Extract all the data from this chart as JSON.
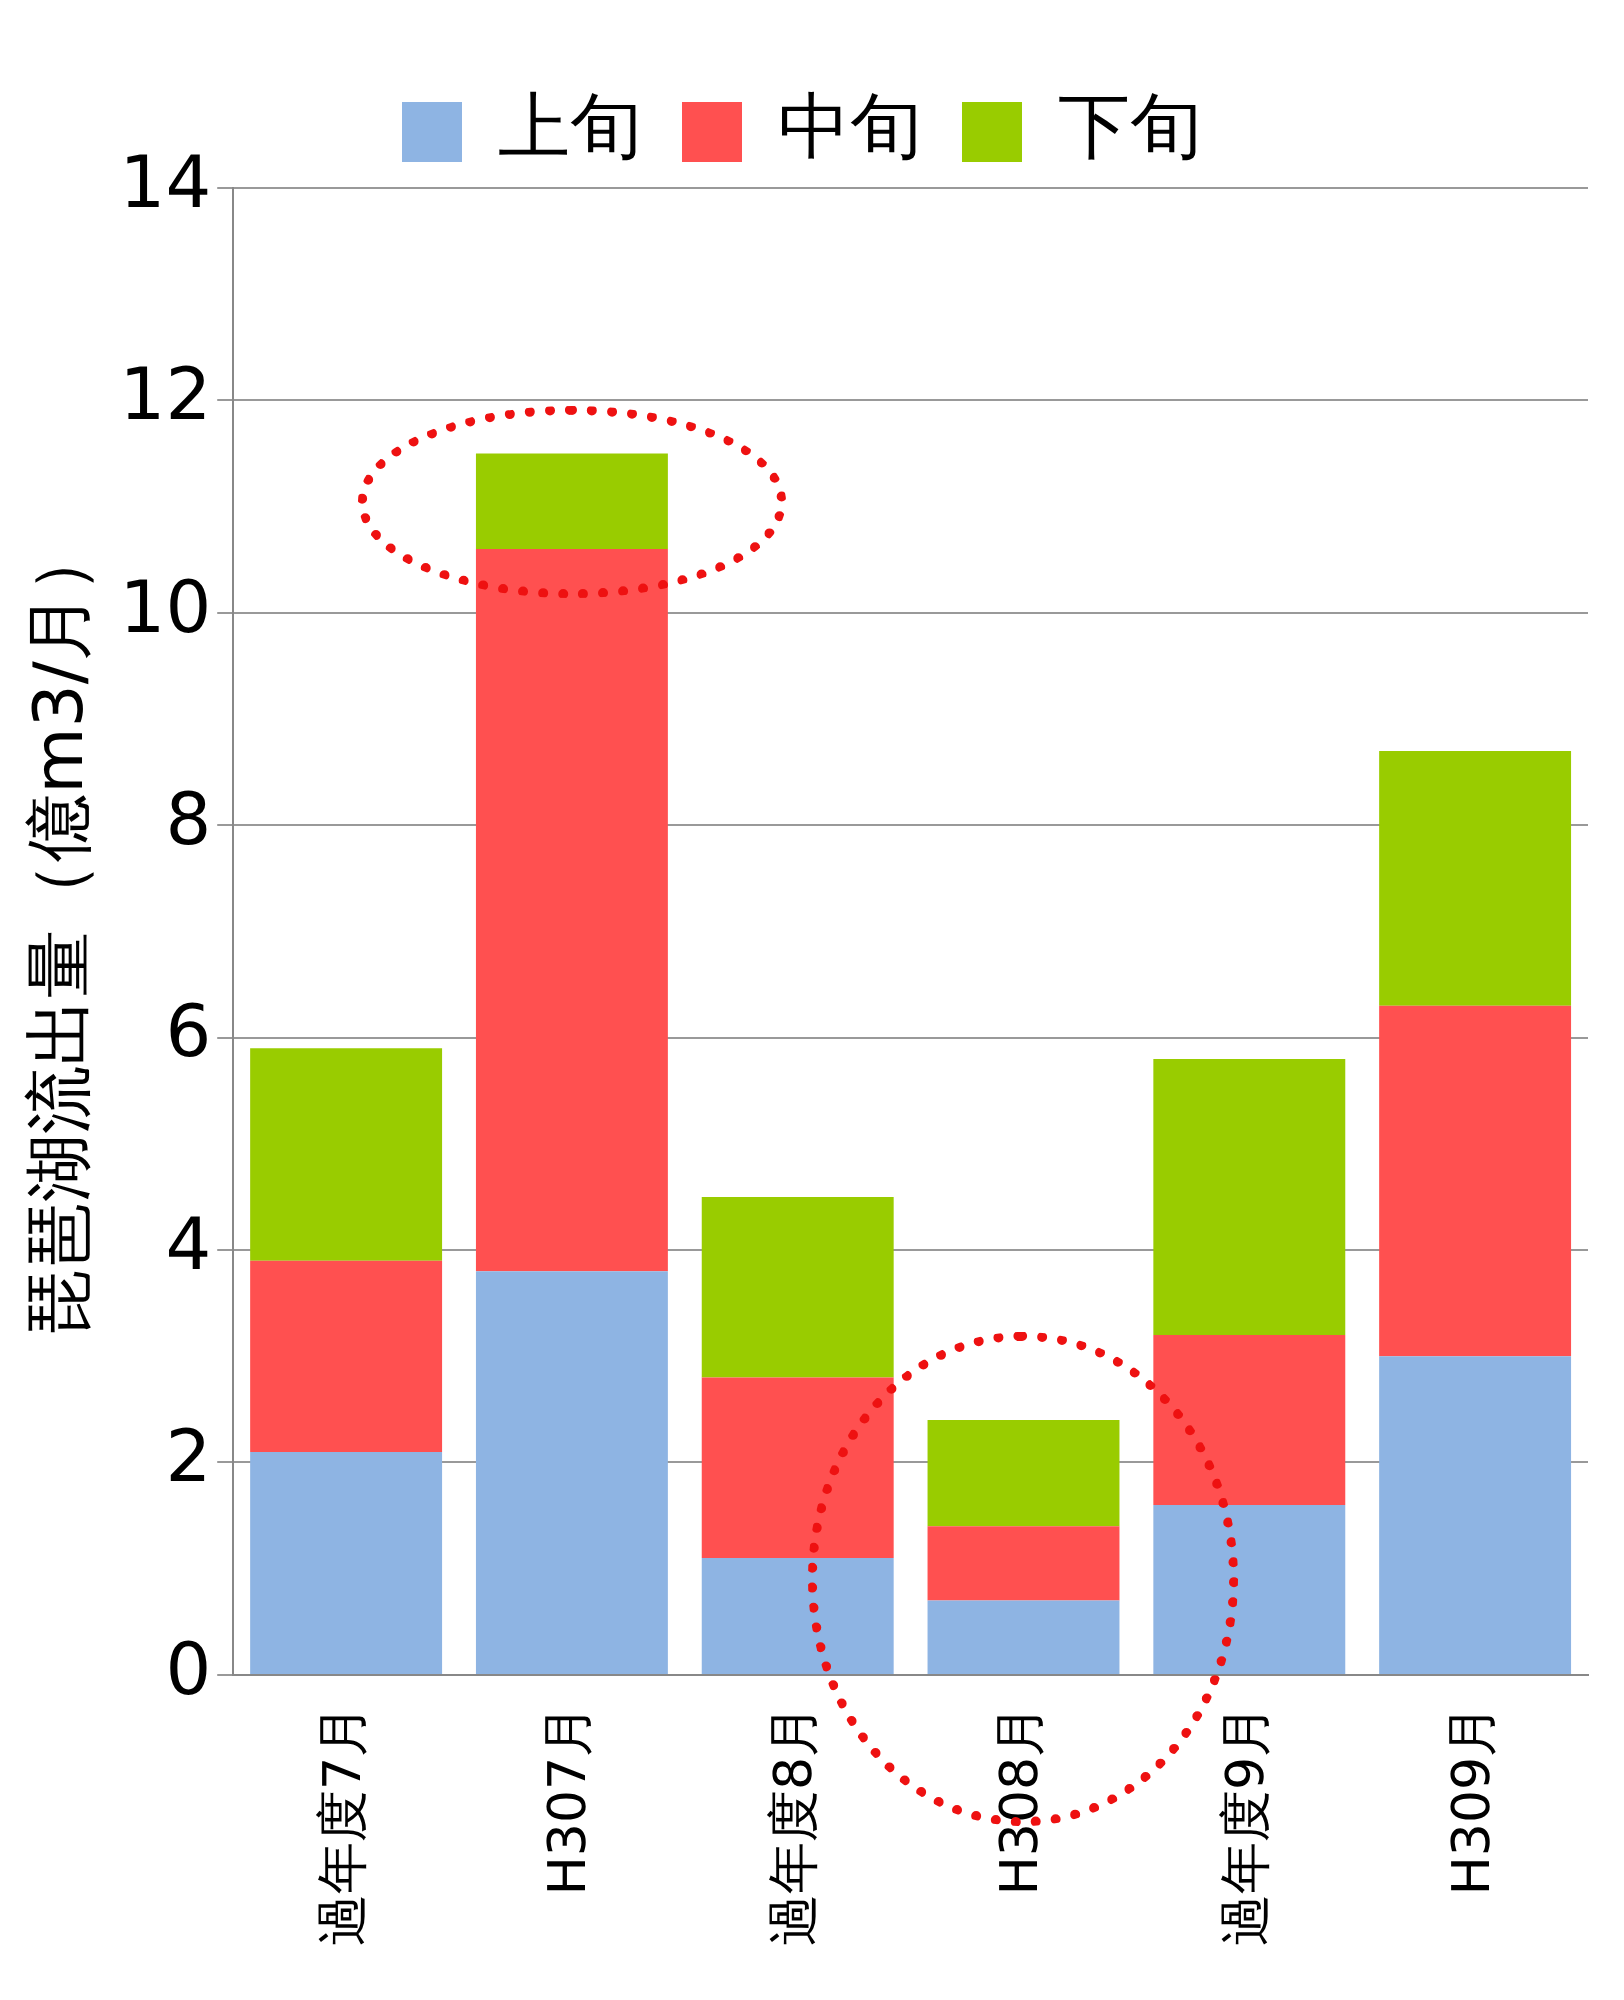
{
  "chart_data": {
    "type": "bar",
    "stacked": true,
    "ylabel": "琵琶湖流出量（億m3/月）",
    "categories": [
      "過年度7月",
      "H307月",
      "過年度8月",
      "H308月",
      "過年度9月",
      "H309月"
    ],
    "series": [
      {
        "name": "上旬",
        "color": "#8eb4e3",
        "values": [
          2.1,
          3.8,
          1.1,
          0.7,
          1.6,
          3.0
        ]
      },
      {
        "name": "中旬",
        "color": "#ff5050",
        "values": [
          1.8,
          6.8,
          1.7,
          0.7,
          1.6,
          3.3
        ]
      },
      {
        "name": "下旬",
        "color": "#99cc00",
        "values": [
          2.0,
          0.9,
          1.7,
          1.0,
          2.6,
          2.4
        ]
      }
    ],
    "ylim": [
      0,
      14
    ],
    "yticks": [
      0,
      2,
      4,
      6,
      8,
      10,
      12,
      14
    ],
    "grid": "y",
    "legend": "top"
  }
}
